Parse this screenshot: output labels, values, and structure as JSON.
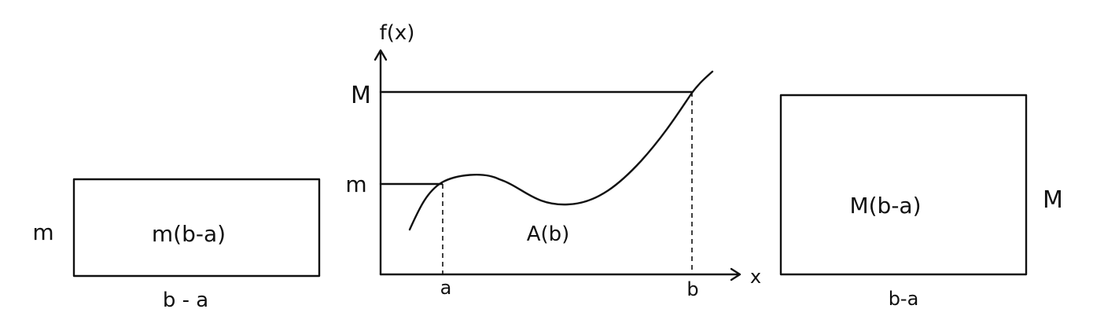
{
  "left_rect": {
    "height_label": "m",
    "area_label": "m(b-a)",
    "width_label": "b - a"
  },
  "graph": {
    "y_axis_label": "f(x)",
    "x_axis_label": "x",
    "upper_label": "M",
    "lower_label": "m",
    "area_label": "A(b)",
    "tick_a": "a",
    "tick_b": "b"
  },
  "right_rect": {
    "height_label": "M",
    "area_label": "M(b-a)",
    "width_label": "b-a"
  }
}
